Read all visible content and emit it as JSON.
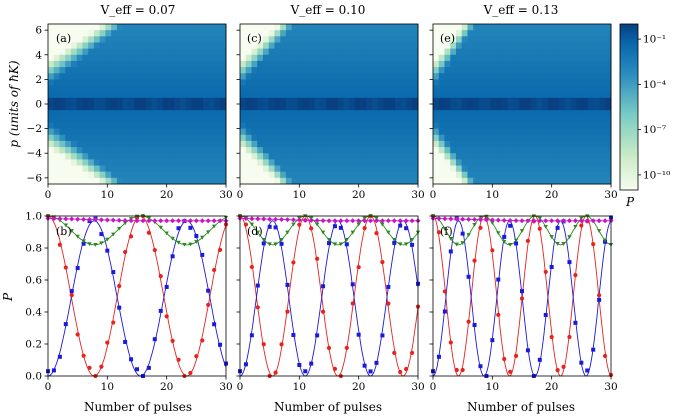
{
  "panels_top": [
    {
      "title": "V_eff = 0.07",
      "label": "(a)",
      "v": 0.07
    },
    {
      "title": "V_eff = 0.10",
      "label": "(c)",
      "v": 0.1
    },
    {
      "title": "V_eff = 0.13",
      "label": "(e)",
      "v": 0.13
    }
  ],
  "panels_bottom": [
    {
      "label": "(b)",
      "v": 0.07
    },
    {
      "label": "(d)",
      "v": 0.1
    },
    {
      "label": "(f)",
      "v": 0.13
    }
  ],
  "axes": {
    "top_ylabel": "p (units of ħK)",
    "bottom_ylabel": "P",
    "xlabel": "Number of pulses",
    "top_yticks": [
      -6,
      -4,
      -2,
      0,
      2,
      4,
      6
    ],
    "top_ylim": [
      -6.5,
      6.5
    ],
    "bottom_yticks": [
      0.0,
      0.2,
      0.4,
      0.6,
      0.8,
      1.0
    ],
    "bottom_ylim": [
      0,
      1
    ],
    "xticks": [
      0,
      10,
      20,
      30
    ],
    "xlim": [
      0,
      30
    ]
  },
  "colorbar": {
    "label": "P",
    "scale": "log",
    "range": [
      1e-11,
      1
    ],
    "ticks": [
      {
        "value": -1,
        "label": "10⁻¹"
      },
      {
        "value": -4,
        "label": "10⁻⁴"
      },
      {
        "value": -7,
        "label": "10⁻⁷"
      },
      {
        "value": -10,
        "label": "10⁻¹⁰"
      }
    ],
    "colormap": [
      "#f7fcf0",
      "#ccebc5",
      "#7bccc4",
      "#2b8cbe",
      "#0868ac",
      "#084081"
    ]
  },
  "colors": {
    "red": "#e6231e",
    "blue": "#1a1adb",
    "green": "#2a8a1f",
    "magenta": "#c814c8"
  },
  "chart_data": [
    {
      "type": "heatmap",
      "panel": "(a)",
      "x_range": [
        0,
        30
      ],
      "y_range": [
        -6,
        6
      ],
      "z": "log10 P",
      "shared_y": true
    },
    {
      "type": "heatmap",
      "panel": "(c)",
      "x_range": [
        0,
        30
      ],
      "y_range": [
        -6,
        6
      ],
      "z": "log10 P"
    },
    {
      "type": "heatmap",
      "panel": "(e)",
      "x_range": [
        0,
        30
      ],
      "y_range": [
        -6,
        6
      ],
      "z": "log10 P"
    },
    {
      "type": "line",
      "panel": "(b)",
      "model_period_red": 15.6,
      "series_count": 4
    },
    {
      "type": "line",
      "panel": "(d)",
      "model_period_red": 11.0,
      "series_count": 4
    },
    {
      "type": "line",
      "panel": "(f)",
      "model_period_red": 8.6,
      "series_count": 4
    }
  ]
}
